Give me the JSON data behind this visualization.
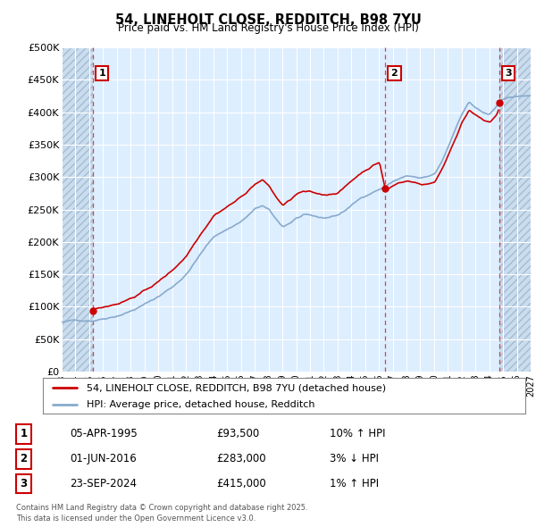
{
  "title1": "54, LINEHOLT CLOSE, REDDITCH, B98 7YU",
  "title2": "Price paid vs. HM Land Registry's House Price Index (HPI)",
  "ylim": [
    0,
    500000
  ],
  "yticks": [
    0,
    50000,
    100000,
    150000,
    200000,
    250000,
    300000,
    350000,
    400000,
    450000,
    500000
  ],
  "ytick_labels": [
    "£0",
    "£50K",
    "£100K",
    "£150K",
    "£200K",
    "£250K",
    "£300K",
    "£350K",
    "£400K",
    "£450K",
    "£500K"
  ],
  "xmin": 1993.0,
  "xmax": 2027.0,
  "background_color": "#ffffff",
  "plot_bg_color": "#ddeeff",
  "hatch_bg_color": "#c8ddf0",
  "grid_color": "#ffffff",
  "sale_color": "#cc0000",
  "hpi_color": "#88aacc",
  "vline1_x": 1995.27,
  "vline2_x": 2016.46,
  "vline3_x": 2024.73,
  "marker1_x": 1995.27,
  "marker1_y": 93500,
  "marker2_x": 2016.46,
  "marker2_y": 283000,
  "marker3_x": 2024.73,
  "marker3_y": 415000,
  "legend_label1": "54, LINEHOLT CLOSE, REDDITCH, B98 7YU (detached house)",
  "legend_label2": "HPI: Average price, detached house, Redditch",
  "table_data": [
    {
      "num": "1",
      "date": "05-APR-1995",
      "price": "£93,500",
      "hpi": "10% ↑ HPI"
    },
    {
      "num": "2",
      "date": "01-JUN-2016",
      "price": "£283,000",
      "hpi": "3% ↓ HPI"
    },
    {
      "num": "3",
      "date": "23-SEP-2024",
      "price": "£415,000",
      "hpi": "1% ↑ HPI"
    }
  ],
  "footnote": "Contains HM Land Registry data © Crown copyright and database right 2025.\nThis data is licensed under the Open Government Licence v3.0."
}
